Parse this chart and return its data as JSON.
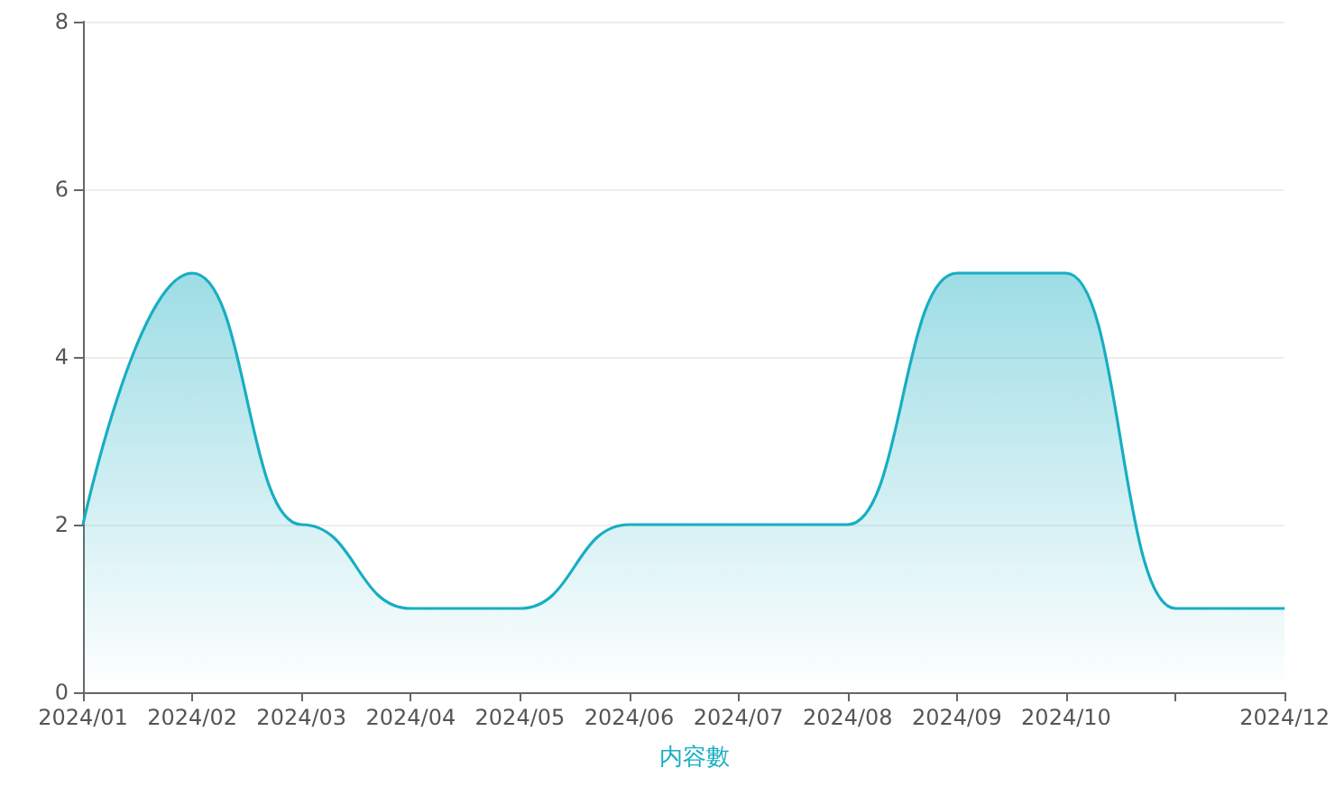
{
  "chart_data": {
    "type": "area",
    "categories": [
      "2024/01",
      "2024/02",
      "2024/03",
      "2024/04",
      "2024/05",
      "2024/06",
      "2024/07",
      "2024/08",
      "2024/09",
      "2024/10",
      null,
      "2024/12"
    ],
    "series": [
      {
        "name": "内容數",
        "color": "#17aec2",
        "values": [
          2,
          5,
          2,
          1,
          1,
          2,
          2,
          2,
          5,
          5,
          1,
          1
        ]
      }
    ],
    "ylim": [
      0,
      8
    ],
    "yticks": [
      0,
      2,
      4,
      6,
      8
    ],
    "grid": "y",
    "legend": "bottom",
    "marker": "none"
  }
}
